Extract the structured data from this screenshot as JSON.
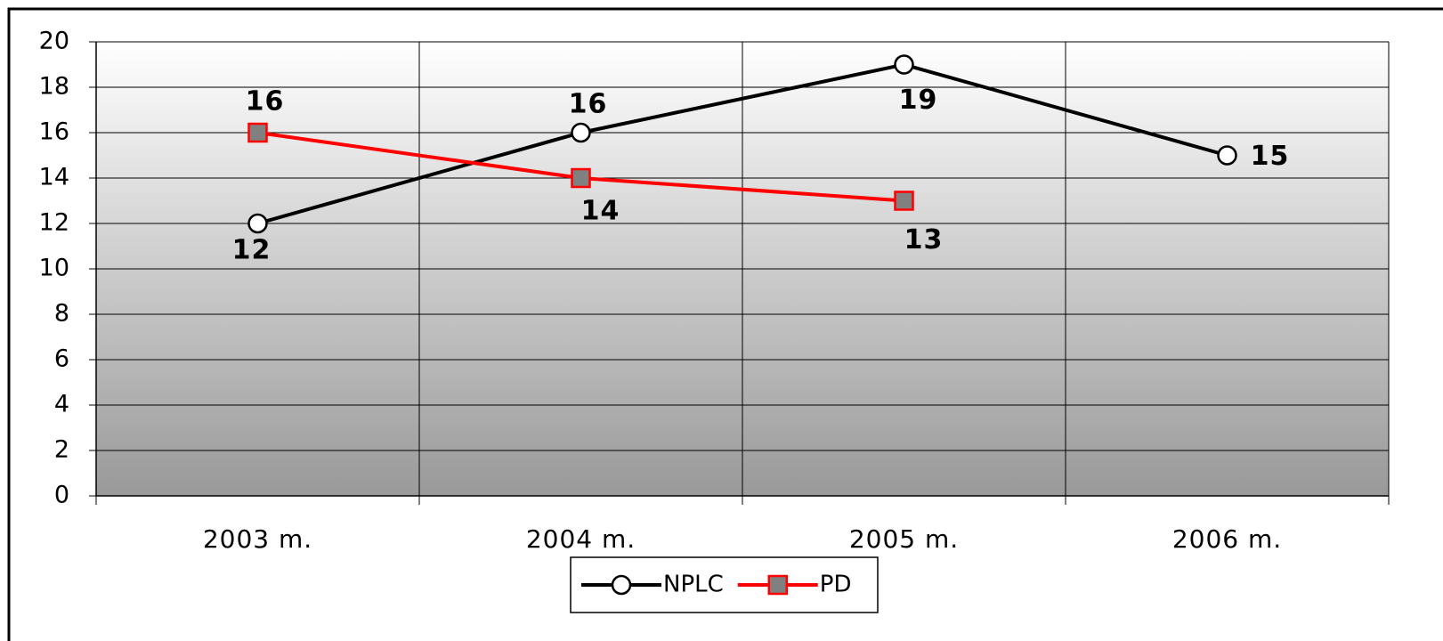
{
  "chart_data": {
    "type": "line",
    "categories": [
      "2003 m.",
      "2004 m.",
      "2005 m.",
      "2006 m."
    ],
    "series": [
      {
        "name": "NPLC",
        "color": "#000000",
        "values": [
          12,
          16,
          19,
          15
        ]
      },
      {
        "name": "PD",
        "color": "#ff0000",
        "values": [
          16,
          14,
          13,
          null
        ]
      }
    ],
    "ylim": [
      0,
      20
    ],
    "yticks": [
      0,
      2,
      4,
      6,
      8,
      10,
      12,
      14,
      16,
      18,
      20
    ],
    "grid": true,
    "legend": "bottom"
  }
}
